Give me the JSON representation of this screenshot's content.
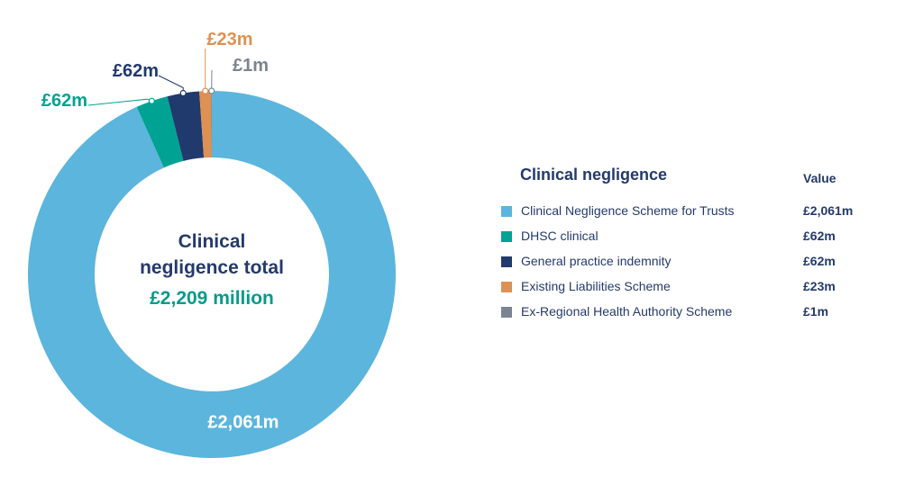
{
  "chart_data": {
    "type": "pie",
    "center": {
      "title_line1": "Clinical",
      "title_line2": "negligence total",
      "total": "£2,209 million"
    },
    "slices": [
      {
        "name": "Clinical Negligence Scheme for Trusts",
        "value": 2061,
        "label": "£2,061m",
        "color": "#5cb5dc"
      },
      {
        "name": "DHSC clinical",
        "value": 62,
        "label": "£62m",
        "color": "#00a393"
      },
      {
        "name": "General practice indemnity",
        "value": 62,
        "label": "£62m",
        "color": "#203a6e"
      },
      {
        "name": "Existing Liabilities Scheme",
        "value": 23,
        "label": "£23m",
        "color": "#dd9152"
      },
      {
        "name": "Ex-Regional Health Authority Scheme",
        "value": 1,
        "label": "£1m",
        "color": "#7a8591"
      }
    ]
  },
  "legend": {
    "title": "Clinical negligence",
    "value_header": "Value",
    "rows": [
      {
        "label": "Clinical Negligence Scheme for Trusts",
        "value": "£2,061m",
        "color": "#5cb5dc"
      },
      {
        "label": "DHSC clinical",
        "value": "£62m",
        "color": "#00a393"
      },
      {
        "label": "General practice indemnity",
        "value": "£62m",
        "color": "#203a6e"
      },
      {
        "label": "Existing Liabilities Scheme",
        "value": "£23m",
        "color": "#dd9152"
      },
      {
        "label": "Ex-Regional Health Authority Scheme",
        "value": "£1m",
        "color": "#7a8591"
      }
    ]
  }
}
